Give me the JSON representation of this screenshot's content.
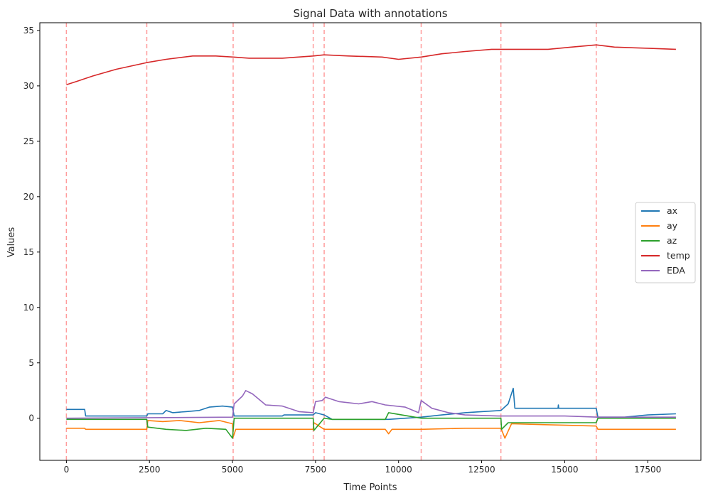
{
  "chart_data": {
    "type": "line",
    "title": "Signal Data with annotations",
    "xlabel": "Time Points",
    "ylabel": "Values",
    "xlim": [
      -800,
      19100
    ],
    "ylim": [
      -3.8,
      35.7
    ],
    "xticks": [
      0,
      2500,
      5000,
      7500,
      10000,
      12500,
      15000,
      17500
    ],
    "yticks": [
      0,
      5,
      10,
      15,
      20,
      25,
      30,
      35
    ],
    "grid": false,
    "legend_position": "center-right",
    "annotations": {
      "style": "dashed vertical lines",
      "color": "#ff9c9c",
      "x": [
        0,
        2420,
        5020,
        7430,
        7760,
        10680,
        13080,
        15950
      ]
    },
    "series": [
      {
        "name": "ax",
        "color": "#1f77b4",
        "points": [
          [
            0,
            0.8
          ],
          [
            550,
            0.8
          ],
          [
            580,
            0.2
          ],
          [
            2420,
            0.2
          ],
          [
            2450,
            0.4
          ],
          [
            2900,
            0.4
          ],
          [
            3000,
            0.7
          ],
          [
            3200,
            0.5
          ],
          [
            3600,
            0.6
          ],
          [
            4000,
            0.7
          ],
          [
            4300,
            1.0
          ],
          [
            4700,
            1.1
          ],
          [
            5000,
            1.0
          ],
          [
            5050,
            0.2
          ],
          [
            6500,
            0.2
          ],
          [
            6550,
            0.3
          ],
          [
            7430,
            0.3
          ],
          [
            7500,
            0.5
          ],
          [
            7760,
            0.3
          ],
          [
            8000,
            -0.1
          ],
          [
            9000,
            -0.1
          ],
          [
            9700,
            -0.1
          ],
          [
            10680,
            0.1
          ],
          [
            11300,
            0.3
          ],
          [
            12000,
            0.5
          ],
          [
            12500,
            0.6
          ],
          [
            13080,
            0.7
          ],
          [
            13300,
            1.3
          ],
          [
            13450,
            2.7
          ],
          [
            13500,
            0.9
          ],
          [
            14800,
            0.9
          ],
          [
            14810,
            1.2
          ],
          [
            14820,
            0.9
          ],
          [
            15950,
            0.9
          ],
          [
            16000,
            0.1
          ],
          [
            16800,
            0.1
          ],
          [
            17500,
            0.3
          ],
          [
            18350,
            0.4
          ]
        ]
      },
      {
        "name": "ay",
        "color": "#ff7f0e",
        "points": [
          [
            0,
            -0.9
          ],
          [
            550,
            -0.9
          ],
          [
            580,
            -1.0
          ],
          [
            2420,
            -1.0
          ],
          [
            2450,
            -0.2
          ],
          [
            2900,
            -0.3
          ],
          [
            3400,
            -0.2
          ],
          [
            4000,
            -0.4
          ],
          [
            4600,
            -0.2
          ],
          [
            5000,
            -0.5
          ],
          [
            5020,
            -1.7
          ],
          [
            5100,
            -1.0
          ],
          [
            7430,
            -1.0
          ],
          [
            7450,
            -0.4
          ],
          [
            7760,
            -1.0
          ],
          [
            9600,
            -1.0
          ],
          [
            9700,
            -1.4
          ],
          [
            9800,
            -1.0
          ],
          [
            10680,
            -1.0
          ],
          [
            12000,
            -0.9
          ],
          [
            13080,
            -0.9
          ],
          [
            13200,
            -1.8
          ],
          [
            13400,
            -0.5
          ],
          [
            15950,
            -0.7
          ],
          [
            16000,
            -1.0
          ],
          [
            18350,
            -1.0
          ]
        ]
      },
      {
        "name": "az",
        "color": "#2ca02c",
        "points": [
          [
            0,
            -0.1
          ],
          [
            2420,
            -0.1
          ],
          [
            2450,
            -0.8
          ],
          [
            3000,
            -1.0
          ],
          [
            3600,
            -1.1
          ],
          [
            4200,
            -0.9
          ],
          [
            4800,
            -1.0
          ],
          [
            5000,
            -1.8
          ],
          [
            5050,
            0.0
          ],
          [
            7430,
            0.0
          ],
          [
            7450,
            -1.1
          ],
          [
            7760,
            0.0
          ],
          [
            8000,
            -0.1
          ],
          [
            9600,
            -0.1
          ],
          [
            9700,
            0.5
          ],
          [
            10680,
            0.0
          ],
          [
            13080,
            0.0
          ],
          [
            13100,
            -1.0
          ],
          [
            13300,
            -0.4
          ],
          [
            15950,
            -0.4
          ],
          [
            16000,
            0.0
          ],
          [
            18350,
            0.0
          ]
        ]
      },
      {
        "name": "temp",
        "color": "#d62728",
        "points": [
          [
            0,
            30.1
          ],
          [
            300,
            30.4
          ],
          [
            800,
            30.9
          ],
          [
            1500,
            31.5
          ],
          [
            2420,
            32.1
          ],
          [
            3000,
            32.4
          ],
          [
            3800,
            32.7
          ],
          [
            4500,
            32.7
          ],
          [
            5020,
            32.6
          ],
          [
            5500,
            32.5
          ],
          [
            6500,
            32.5
          ],
          [
            7430,
            32.7
          ],
          [
            7760,
            32.8
          ],
          [
            8500,
            32.7
          ],
          [
            9500,
            32.6
          ],
          [
            10000,
            32.4
          ],
          [
            10680,
            32.6
          ],
          [
            11300,
            32.9
          ],
          [
            12000,
            33.1
          ],
          [
            12800,
            33.3
          ],
          [
            13500,
            33.3
          ],
          [
            14500,
            33.3
          ],
          [
            15200,
            33.5
          ],
          [
            15950,
            33.7
          ],
          [
            16500,
            33.5
          ],
          [
            17500,
            33.4
          ],
          [
            18350,
            33.3
          ]
        ]
      },
      {
        "name": "EDA",
        "color": "#9467bd",
        "points": [
          [
            0,
            0.0
          ],
          [
            5000,
            0.1
          ],
          [
            5050,
            1.3
          ],
          [
            5300,
            2.0
          ],
          [
            5400,
            2.5
          ],
          [
            5600,
            2.2
          ],
          [
            6000,
            1.2
          ],
          [
            6500,
            1.1
          ],
          [
            7000,
            0.6
          ],
          [
            7430,
            0.5
          ],
          [
            7500,
            1.5
          ],
          [
            7700,
            1.6
          ],
          [
            7800,
            1.9
          ],
          [
            8200,
            1.5
          ],
          [
            8800,
            1.3
          ],
          [
            9200,
            1.5
          ],
          [
            9600,
            1.2
          ],
          [
            10200,
            1.0
          ],
          [
            10600,
            0.5
          ],
          [
            10680,
            1.6
          ],
          [
            11000,
            0.9
          ],
          [
            11500,
            0.5
          ],
          [
            12000,
            0.3
          ],
          [
            13000,
            0.2
          ],
          [
            14000,
            0.2
          ],
          [
            15000,
            0.2
          ],
          [
            16000,
            0.1
          ],
          [
            18350,
            0.1
          ]
        ]
      }
    ]
  }
}
